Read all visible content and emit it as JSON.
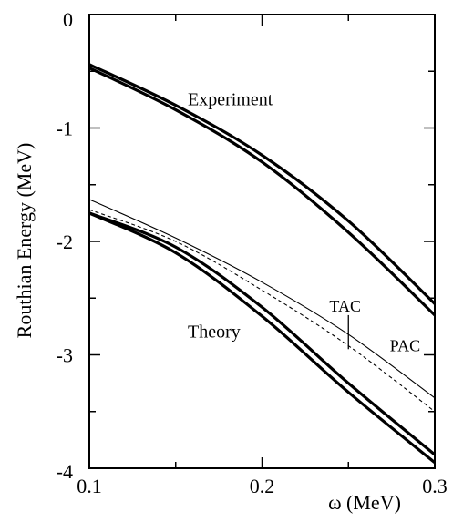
{
  "chart_data": {
    "type": "line",
    "title": "",
    "xlabel": "ω (MeV)",
    "ylabel": "Routhian  Energy (MeV)",
    "xlim": [
      0.1,
      0.3
    ],
    "ylim": [
      -4,
      0
    ],
    "x_ticks": [
      0.1,
      0.2,
      0.3
    ],
    "x_tick_labels": [
      "0.1",
      "0.2",
      "0.3"
    ],
    "y_ticks": [
      0,
      -1,
      -2,
      -3,
      -4
    ],
    "y_tick_labels": [
      "0",
      "-1",
      "-2",
      "-3",
      "-4"
    ],
    "grid": false,
    "legend": "none",
    "series": [
      {
        "x": [
          0.1,
          0.15,
          0.2,
          0.25,
          0.3
        ],
        "y": [
          -0.44,
          -0.8,
          -1.24,
          -1.82,
          -2.55
        ],
        "style": "thick"
      },
      {
        "x": [
          0.1,
          0.15,
          0.2,
          0.25,
          0.3
        ],
        "y": [
          -0.47,
          -0.84,
          -1.3,
          -1.92,
          -2.65
        ],
        "style": "thick"
      },
      {
        "x": [
          0.1,
          0.15,
          0.2,
          0.25,
          0.3
        ],
        "y": [
          -1.63,
          -1.97,
          -2.36,
          -2.82,
          -3.38
        ],
        "style": "thin"
      },
      {
        "x": [
          0.1,
          0.15,
          0.2,
          0.25,
          0.3
        ],
        "y": [
          -1.72,
          -2.0,
          -2.43,
          -2.92,
          -3.5
        ],
        "style": "dashed"
      },
      {
        "x": [
          0.1,
          0.15,
          0.2,
          0.25,
          0.3
        ],
        "y": [
          -1.75,
          -2.05,
          -2.58,
          -3.25,
          -3.88
        ],
        "style": "thick"
      },
      {
        "x": [
          0.1,
          0.15,
          0.2,
          0.25,
          0.3
        ],
        "y": [
          -1.75,
          -2.1,
          -2.66,
          -3.33,
          -3.95
        ],
        "style": "thick"
      }
    ],
    "annotations": [
      {
        "text": "Experiment",
        "x": 0.157,
        "y": -0.75
      },
      {
        "text": "Theory",
        "x": 0.157,
        "y": -2.8
      },
      {
        "text": "TAC",
        "x": 0.239,
        "y": -2.57
      },
      {
        "text": "PAC",
        "x": 0.274,
        "y": -2.92
      }
    ],
    "tac_marker": {
      "x": 0.25,
      "y_from": -2.65,
      "y_to": -2.95
    }
  }
}
